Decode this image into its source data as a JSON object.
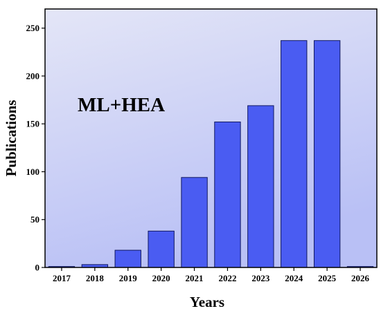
{
  "chart_data": {
    "type": "bar",
    "categories": [
      "2017",
      "2018",
      "2019",
      "2020",
      "2021",
      "2022",
      "2023",
      "2024",
      "2025",
      "2026"
    ],
    "values": [
      1,
      3,
      18,
      38,
      94,
      152,
      169,
      237,
      237,
      1
    ],
    "xlabel": "Years",
    "ylabel": "Publications",
    "ylim": [
      0,
      270
    ],
    "yticks": [
      0,
      50,
      100,
      150,
      200,
      250
    ],
    "annotation": "ML+HEA",
    "grid": false,
    "colors": {
      "bar_fill": "#4a5cf2",
      "bar_stroke": "#101860",
      "bg_top": "#e4e6f7",
      "bg_bottom": "#b9c0f5"
    }
  }
}
